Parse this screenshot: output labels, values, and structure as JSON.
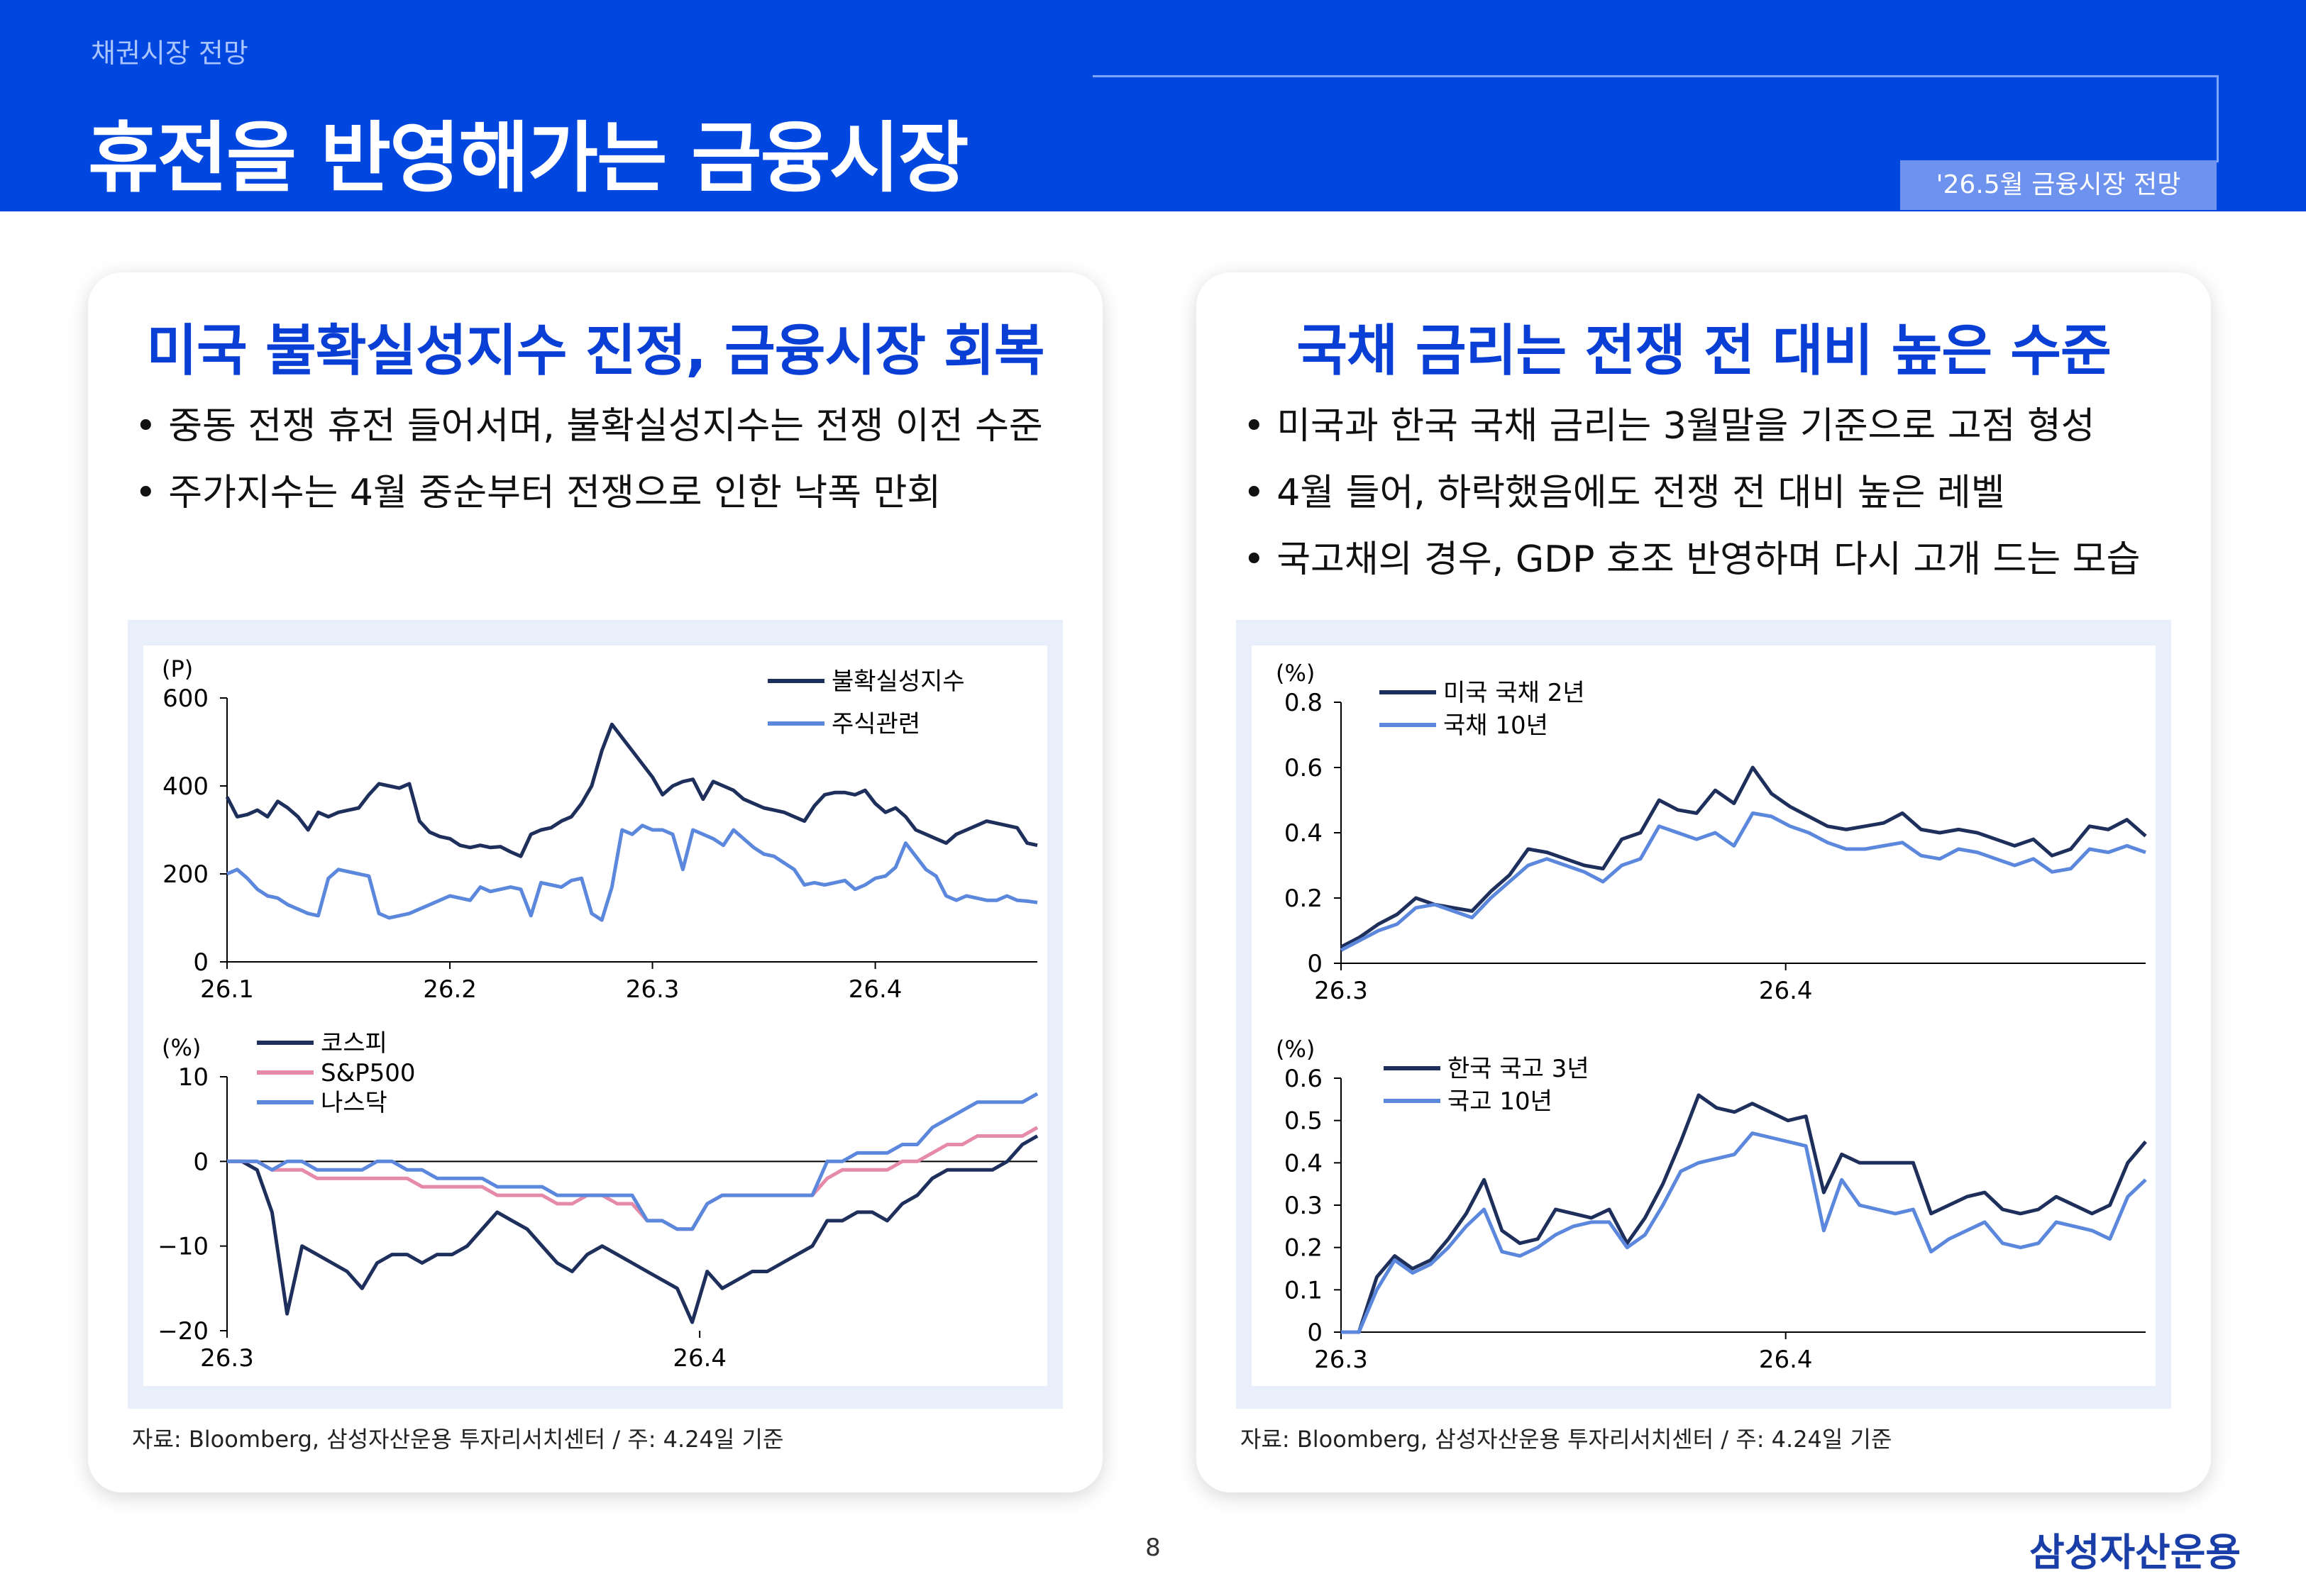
{
  "header": {
    "section": "채권시장 전망",
    "title": "휴전을 반영해가는 금융시장",
    "tag": "'26.5월 금융시장 전망"
  },
  "left_panel": {
    "title": "미국 불확실성지수 진정, 금융시장 회복",
    "bullets": [
      "중동 전쟁 휴전 들어서며, 불확실성지수는 전쟁 이전 수준",
      "주가지수는 4월 중순부터 전쟁으로 인한 낙폭 만회"
    ],
    "source": "자료: Bloomberg, 삼성자산운용 투자리서치센터 / 주: 4.24일 기준"
  },
  "right_panel": {
    "title": "국채 금리는 전쟁 전 대비 높은 수준",
    "bullets": [
      "미국과 한국 국채 금리는 3월말을 기준으로 고점 형성",
      "4월 들어, 하락했음에도 전쟁 전 대비 높은 레벨",
      "국고채의 경우, GDP 호조 반영하며 다시 고개 드는 모습"
    ],
    "source": "자료: Bloomberg, 삼성자산운용 투자리서치센터 / 주: 4.24일 기준"
  },
  "page_number": "8",
  "brand": "삼성자산운용",
  "chart_data": [
    {
      "type": "line",
      "id": "uncertainty",
      "ylabel": "(P)",
      "ylim": [
        0,
        600
      ],
      "yticks": [
        0,
        200,
        400,
        600
      ],
      "xlim": [
        0,
        80
      ],
      "xticks": [
        {
          "v": 0,
          "label": "26.1"
        },
        {
          "v": 22,
          "label": "26.2"
        },
        {
          "v": 42,
          "label": "26.3"
        },
        {
          "v": 64,
          "label": "26.4"
        }
      ],
      "legend_position": "top-right",
      "series": [
        {
          "name": "불확실성지수",
          "color": "#1f2f5c",
          "values": [
            375,
            330,
            335,
            345,
            330,
            365,
            350,
            330,
            300,
            340,
            330,
            340,
            345,
            350,
            380,
            405,
            400,
            395,
            405,
            320,
            295,
            285,
            280,
            265,
            260,
            265,
            260,
            262,
            250,
            240,
            290,
            300,
            305,
            320,
            330,
            360,
            400,
            480,
            540,
            510,
            480,
            450,
            420,
            380,
            400,
            410,
            415,
            370,
            410,
            400,
            390,
            370,
            360,
            350,
            345,
            340,
            330,
            320,
            355,
            380,
            385,
            385,
            380,
            390,
            360,
            340,
            350,
            330,
            300,
            290,
            280,
            270,
            290,
            300,
            310,
            320,
            315,
            310,
            305,
            270,
            265
          ]
        },
        {
          "name": "주식관련",
          "color": "#5b87dc",
          "values": [
            200,
            210,
            190,
            165,
            150,
            145,
            130,
            120,
            110,
            105,
            190,
            210,
            205,
            200,
            195,
            110,
            100,
            105,
            110,
            120,
            130,
            140,
            150,
            145,
            140,
            170,
            160,
            165,
            170,
            165,
            105,
            180,
            175,
            170,
            185,
            190,
            110,
            95,
            170,
            300,
            290,
            310,
            300,
            300,
            290,
            210,
            300,
            290,
            280,
            265,
            300,
            280,
            260,
            245,
            240,
            225,
            210,
            175,
            180,
            175,
            180,
            185,
            165,
            175,
            190,
            195,
            215,
            270,
            240,
            210,
            195,
            150,
            140,
            150,
            145,
            140,
            140,
            150,
            140,
            138,
            135
          ]
        }
      ]
    },
    {
      "type": "line",
      "id": "equity",
      "ylabel": "(%)",
      "ylim": [
        -20,
        10
      ],
      "yticks": [
        -20,
        -10,
        0,
        10
      ],
      "xlim": [
        0,
        60
      ],
      "xticks": [
        {
          "v": 0,
          "label": "26.3"
        },
        {
          "v": 35,
          "label": "26.4"
        }
      ],
      "legend_position": "top-left",
      "series": [
        {
          "name": "코스피",
          "color": "#1f2f5c",
          "values": [
            0,
            0,
            -1,
            -6,
            -18,
            -10,
            -11,
            -12,
            -13,
            -15,
            -12,
            -11,
            -11,
            -12,
            -11,
            -11,
            -10,
            -8,
            -6,
            -7,
            -8,
            -10,
            -12,
            -13,
            -11,
            -10,
            -11,
            -12,
            -13,
            -14,
            -15,
            -19,
            -13,
            -15,
            -14,
            -13,
            -13,
            -12,
            -11,
            -10,
            -7,
            -7,
            -6,
            -6,
            -7,
            -5,
            -4,
            -2,
            -1,
            -1,
            -1,
            -1,
            0,
            2,
            3
          ]
        },
        {
          "name": "S&P500",
          "color": "#e58aa8",
          "values": [
            0,
            0,
            0,
            -1,
            -1,
            -1,
            -2,
            -2,
            -2,
            -2,
            -2,
            -2,
            -2,
            -3,
            -3,
            -3,
            -3,
            -3,
            -4,
            -4,
            -4,
            -4,
            -5,
            -5,
            -4,
            -4,
            -5,
            -5,
            -7,
            -7,
            -8,
            -8,
            -5,
            -4,
            -4,
            -4,
            -4,
            -4,
            -4,
            -4,
            -2,
            -1,
            -1,
            -1,
            -1,
            0,
            0,
            1,
            2,
            2,
            3,
            3,
            3,
            3,
            4
          ]
        },
        {
          "name": "나스닥",
          "color": "#5b87dc",
          "values": [
            0,
            0,
            0,
            -1,
            0,
            0,
            -1,
            -1,
            -1,
            -1,
            0,
            0,
            -1,
            -1,
            -2,
            -2,
            -2,
            -2,
            -3,
            -3,
            -3,
            -3,
            -4,
            -4,
            -4,
            -4,
            -4,
            -4,
            -7,
            -7,
            -8,
            -8,
            -5,
            -4,
            -4,
            -4,
            -4,
            -4,
            -4,
            -4,
            0,
            0,
            1,
            1,
            1,
            2,
            2,
            4,
            5,
            6,
            7,
            7,
            7,
            7,
            8
          ]
        }
      ]
    },
    {
      "type": "line",
      "id": "us_treasury",
      "ylabel": "(%)",
      "ylim": [
        0,
        0.8
      ],
      "yticks": [
        0,
        0.2,
        0.4,
        0.6,
        0.8
      ],
      "xlim": [
        0,
        38
      ],
      "xticks": [
        {
          "v": 0,
          "label": "26.3"
        },
        {
          "v": 21,
          "label": "26.4"
        }
      ],
      "legend_position": "top-left",
      "series": [
        {
          "name": "미국 국채 2년",
          "color": "#1f2f5c",
          "values": [
            0.05,
            0.08,
            0.12,
            0.15,
            0.2,
            0.18,
            0.17,
            0.16,
            0.22,
            0.27,
            0.35,
            0.34,
            0.32,
            0.3,
            0.29,
            0.38,
            0.4,
            0.5,
            0.47,
            0.46,
            0.53,
            0.49,
            0.6,
            0.52,
            0.48,
            0.45,
            0.42,
            0.41,
            0.42,
            0.43,
            0.46,
            0.41,
            0.4,
            0.41,
            0.4,
            0.38,
            0.36,
            0.38,
            0.33,
            0.35,
            0.42,
            0.41,
            0.44,
            0.39
          ]
        },
        {
          "name": "국채 10년",
          "color": "#5b87dc",
          "values": [
            0.04,
            0.07,
            0.1,
            0.12,
            0.17,
            0.18,
            0.16,
            0.14,
            0.2,
            0.25,
            0.3,
            0.32,
            0.3,
            0.28,
            0.25,
            0.3,
            0.32,
            0.42,
            0.4,
            0.38,
            0.4,
            0.36,
            0.46,
            0.45,
            0.42,
            0.4,
            0.37,
            0.35,
            0.35,
            0.36,
            0.37,
            0.33,
            0.32,
            0.35,
            0.34,
            0.32,
            0.3,
            0.32,
            0.28,
            0.29,
            0.35,
            0.34,
            0.36,
            0.34
          ]
        }
      ]
    },
    {
      "type": "line",
      "id": "kr_treasury",
      "ylabel": "(%)",
      "ylim": [
        0,
        0.6
      ],
      "yticks": [
        0,
        0.1,
        0.2,
        0.3,
        0.4,
        0.5,
        0.6
      ],
      "xlim": [
        0,
        38
      ],
      "xticks": [
        {
          "v": 0,
          "label": "26.3"
        },
        {
          "v": 21,
          "label": "26.4"
        }
      ],
      "legend_position": "top-left",
      "series": [
        {
          "name": "한국 국고 3년",
          "color": "#1f2f5c",
          "values": [
            0,
            0,
            0.13,
            0.18,
            0.15,
            0.17,
            0.22,
            0.28,
            0.36,
            0.24,
            0.21,
            0.22,
            0.29,
            0.28,
            0.27,
            0.29,
            0.21,
            0.27,
            0.35,
            0.45,
            0.56,
            0.53,
            0.52,
            0.54,
            0.52,
            0.5,
            0.51,
            0.33,
            0.42,
            0.4,
            0.4,
            0.4,
            0.4,
            0.28,
            0.3,
            0.32,
            0.33,
            0.29,
            0.28,
            0.29,
            0.32,
            0.3,
            0.28,
            0.3,
            0.4,
            0.45
          ]
        },
        {
          "name": "국고 10년",
          "color": "#5b87dc",
          "values": [
            0,
            0,
            0.1,
            0.17,
            0.14,
            0.16,
            0.2,
            0.25,
            0.29,
            0.19,
            0.18,
            0.2,
            0.23,
            0.25,
            0.26,
            0.26,
            0.2,
            0.23,
            0.3,
            0.38,
            0.4,
            0.41,
            0.42,
            0.47,
            0.46,
            0.45,
            0.44,
            0.24,
            0.36,
            0.3,
            0.29,
            0.28,
            0.29,
            0.19,
            0.22,
            0.24,
            0.26,
            0.21,
            0.2,
            0.21,
            0.26,
            0.25,
            0.24,
            0.22,
            0.32,
            0.36
          ]
        }
      ]
    }
  ]
}
